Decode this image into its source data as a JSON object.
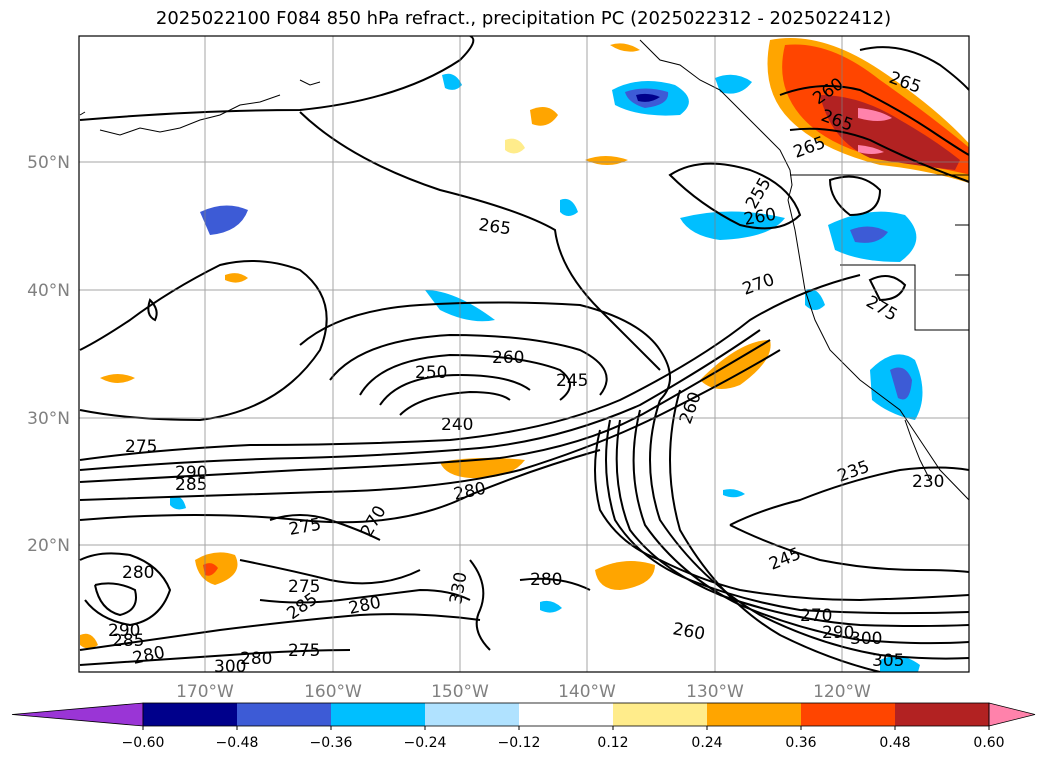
{
  "title": "2025022100 F084 850 hPa refract., precipitation PC (2025022312 - 2025022412)",
  "map": {
    "lat_labels": [
      "50°N",
      "40°N",
      "30°N",
      "20°N"
    ],
    "lon_labels": [
      "170°W",
      "160°W",
      "150°W",
      "140°W",
      "130°W",
      "120°W"
    ],
    "contour_labels": [
      "265",
      "265",
      "260",
      "265",
      "265",
      "255",
      "260",
      "270",
      "275",
      "250",
      "260",
      "245",
      "240",
      "275",
      "290",
      "285",
      "280",
      "235",
      "230",
      "275",
      "270",
      "280",
      "280",
      "275",
      "285",
      "280",
      "245",
      "270",
      "290",
      "300",
      "260",
      "290",
      "285",
      "280",
      "275",
      "305",
      "300",
      "280",
      "330",
      "260"
    ]
  },
  "colorbar": {
    "ticks": [
      "−0.60",
      "−0.48",
      "−0.36",
      "−0.24",
      "−0.12",
      "0.12",
      "0.24",
      "0.36",
      "0.48",
      "0.60"
    ],
    "colors": [
      "#9a35d6",
      "#00008b",
      "#3d5bd6",
      "#00bfff",
      "#b0e2ff",
      "#ffffff",
      "#ffec8b",
      "#ffa500",
      "#ff4500",
      "#b22222",
      "#ff82ab"
    ]
  }
}
